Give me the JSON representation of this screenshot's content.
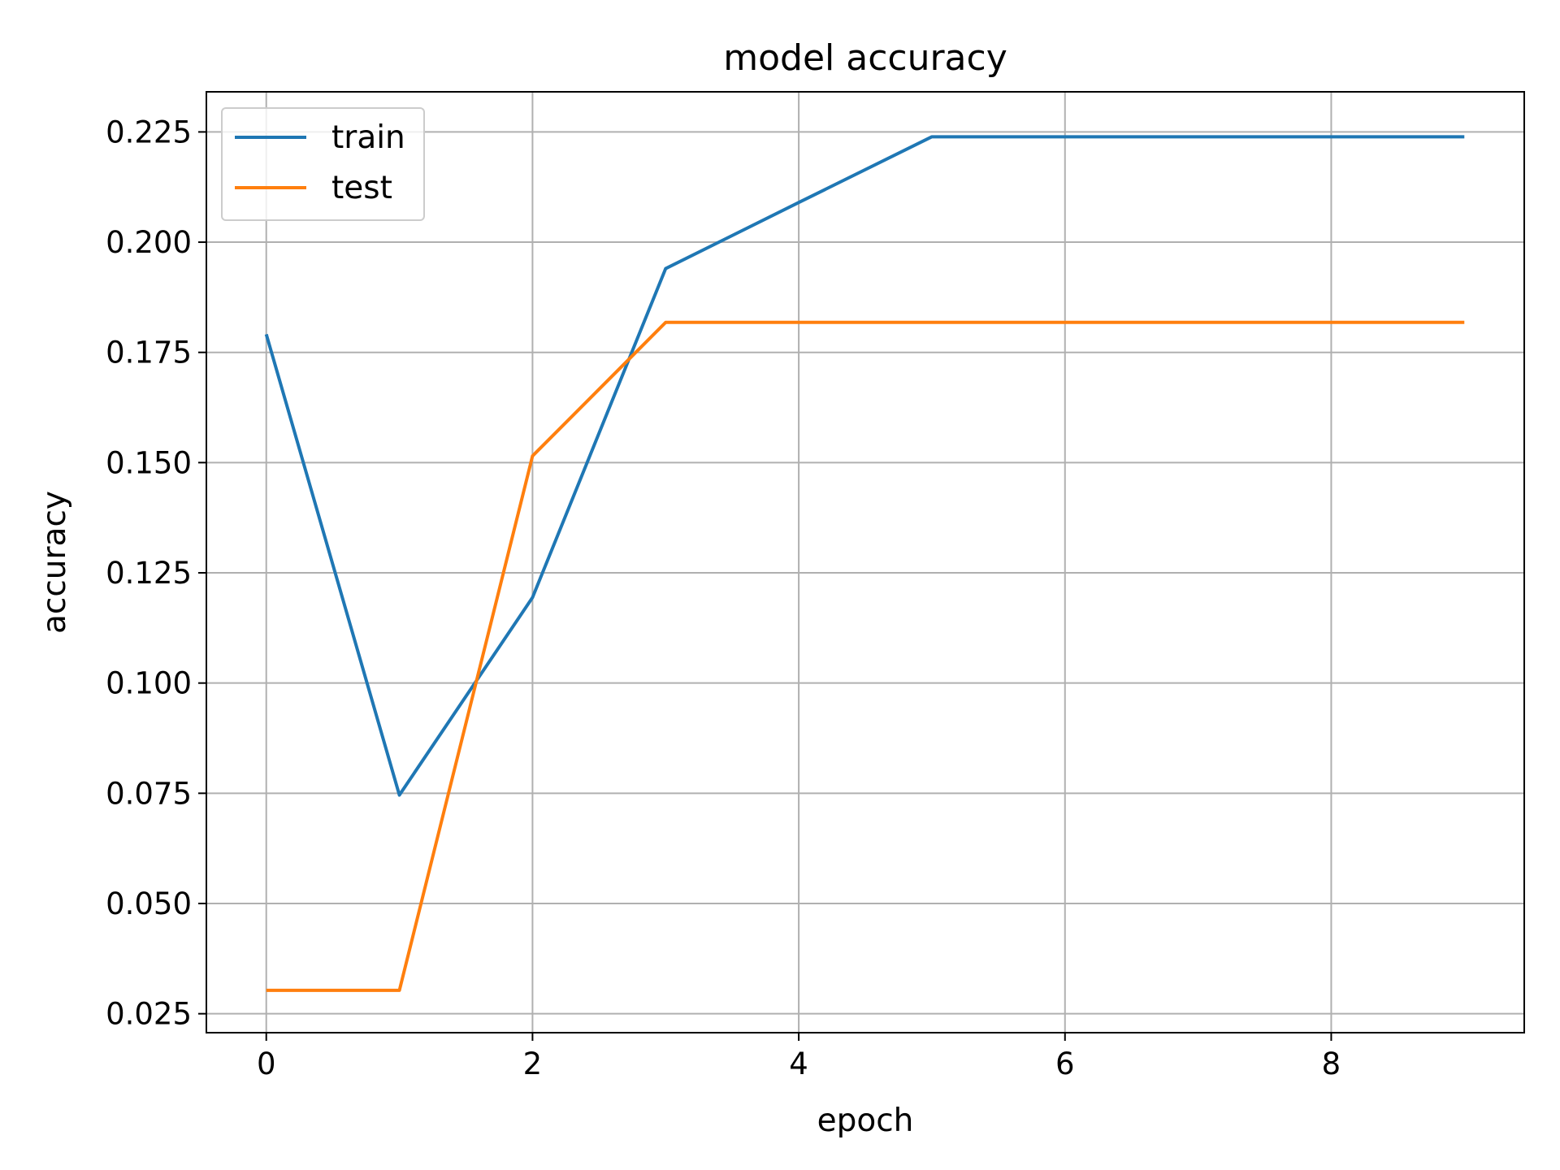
{
  "chart_data": {
    "type": "line",
    "title": "model accuracy",
    "xlabel": "epoch",
    "ylabel": "accuracy",
    "x": [
      0,
      1,
      2,
      3,
      4,
      5,
      6,
      7,
      8,
      9
    ],
    "xlim": [
      -0.45,
      9.45
    ],
    "ylim": [
      0.0207,
      0.2341
    ],
    "xticks": [
      0,
      2,
      4,
      6,
      8
    ],
    "xtick_labels": [
      "0",
      "2",
      "4",
      "6",
      "8"
    ],
    "yticks": [
      0.025,
      0.05,
      0.075,
      0.1,
      0.125,
      0.15,
      0.175,
      0.2,
      0.225
    ],
    "ytick_labels": [
      "0.025",
      "0.050",
      "0.075",
      "0.100",
      "0.125",
      "0.150",
      "0.175",
      "0.200",
      "0.225"
    ],
    "grid": true,
    "legend_position": "upper-left",
    "series": [
      {
        "name": "train",
        "color": "#1f77b4",
        "values": [
          0.1791,
          0.0746,
          0.1194,
          0.194,
          0.209,
          0.2239,
          0.2239,
          0.2239,
          0.2239,
          0.2239
        ]
      },
      {
        "name": "test",
        "color": "#ff7f0e",
        "values": [
          0.0303,
          0.0303,
          0.1515,
          0.1818,
          0.1818,
          0.1818,
          0.1818,
          0.1818,
          0.1818,
          0.1818
        ]
      }
    ]
  }
}
